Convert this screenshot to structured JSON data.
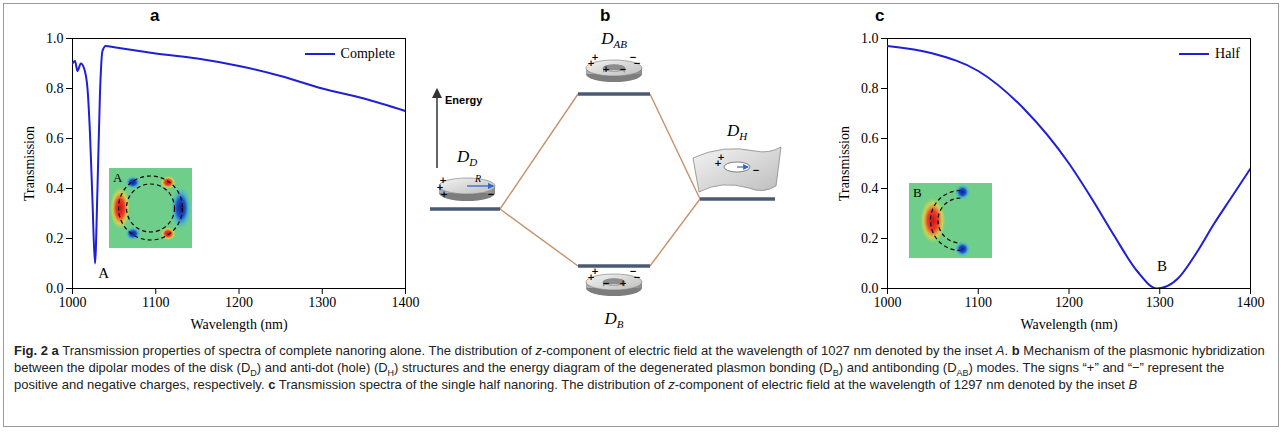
{
  "panel_labels": [
    "a",
    "b",
    "c"
  ],
  "chart_data": [
    {
      "type": "line",
      "xlabel": "Wavelength (nm)",
      "ylabel": "Transmission",
      "x": [
        1000,
        1003,
        1006,
        1010,
        1014,
        1018,
        1021,
        1024,
        1027,
        1030,
        1033,
        1036,
        1040,
        1050,
        1070,
        1100,
        1150,
        1200,
        1250,
        1300,
        1350,
        1400
      ],
      "series": [
        {
          "name": "Complete",
          "color": "#1f1fd6",
          "values": [
            0.9,
            0.91,
            0.87,
            0.9,
            0.88,
            0.8,
            0.62,
            0.35,
            0.1,
            0.4,
            0.78,
            0.95,
            0.97,
            0.965,
            0.955,
            0.94,
            0.92,
            0.89,
            0.85,
            0.8,
            0.76,
            0.71
          ]
        }
      ],
      "xlim": [
        1000,
        1400
      ],
      "xticks": [
        1000,
        1100,
        1200,
        1300,
        1400
      ],
      "ylim": [
        0,
        1
      ],
      "yticks": [
        {
          "value": 0,
          "label": "0.0"
        },
        0.2,
        0.4,
        0.6,
        0.8,
        {
          "value": 1,
          "label": "1.0"
        }
      ],
      "grid": false,
      "legend": "upper right",
      "annotations": [
        {
          "text": "A",
          "x": 1031,
          "y": 0.06
        }
      ],
      "inset_label": "A"
    },
    {
      "type": "line",
      "xlabel": "Wavelength (nm)",
      "ylabel": "Transmission",
      "x": [
        1000,
        1050,
        1100,
        1150,
        1200,
        1225,
        1250,
        1275,
        1297,
        1320,
        1340,
        1360,
        1380,
        1400
      ],
      "series": [
        {
          "name": "Half",
          "color": "#1f1fd6",
          "values": [
            0.97,
            0.94,
            0.87,
            0.72,
            0.5,
            0.36,
            0.21,
            0.07,
            0.0,
            0.04,
            0.14,
            0.26,
            0.37,
            0.48
          ]
        }
      ],
      "xlim": [
        1000,
        1400
      ],
      "xticks": [
        1000,
        1100,
        1200,
        1300,
        1400
      ],
      "ylim": [
        0,
        1
      ],
      "yticks": [
        {
          "value": 0,
          "label": "0.0"
        },
        0.2,
        0.4,
        0.6,
        0.8,
        {
          "value": 1,
          "label": "1.0"
        }
      ],
      "grid": false,
      "legend": "upper right",
      "annotations": [
        {
          "text": "B",
          "x": 1297,
          "y": 0.09
        }
      ],
      "inset_label": "B"
    }
  ],
  "diagram": {
    "axis_label": "Energy",
    "radius_label": "R",
    "charges": {
      "positive": "+",
      "negative": "−"
    },
    "modes": [
      {
        "label": "D",
        "sub": "D"
      },
      {
        "label": "D",
        "sub": "AB"
      },
      {
        "label": "D",
        "sub": "H"
      },
      {
        "label": "D",
        "sub": "B"
      }
    ]
  },
  "caption": [
    {
      "text": "Fig. 2 a",
      "bold": true
    },
    {
      "text": " Transmission properties of spectra of complete nanoring alone. The distribution of "
    },
    {
      "text": "z",
      "italic": true
    },
    {
      "text": "-component of electric field at the wavelength of 1027 nm denoted by the inset "
    },
    {
      "text": "A",
      "italic": true
    },
    {
      "text": ". "
    },
    {
      "text": "b",
      "bold": true
    },
    {
      "text": " Mechanism of the plasmonic hybridization between the dipolar modes of the disk (D"
    },
    {
      "text": "D",
      "sub": true
    },
    {
      "text": ") and anti-dot (hole) (D"
    },
    {
      "text": "H",
      "sub": true
    },
    {
      "text": ") structures and the energy diagram of the degenerated plasmon bonding (D"
    },
    {
      "text": "B",
      "sub": true
    },
    {
      "text": ") and antibonding (D"
    },
    {
      "text": "AB",
      "sub": true
    },
    {
      "text": ") modes. The signs “+” and “−” represent the positive and negative charges, respectively. "
    },
    {
      "text": "c",
      "bold": true
    },
    {
      "text": " Transmission spectra of the single half nanoring. The distribution of "
    },
    {
      "text": "z",
      "italic": true
    },
    {
      "text": "-component of electric field at the wavelength of 1297 nm denoted by the inset "
    },
    {
      "text": "B",
      "italic": true
    }
  ]
}
